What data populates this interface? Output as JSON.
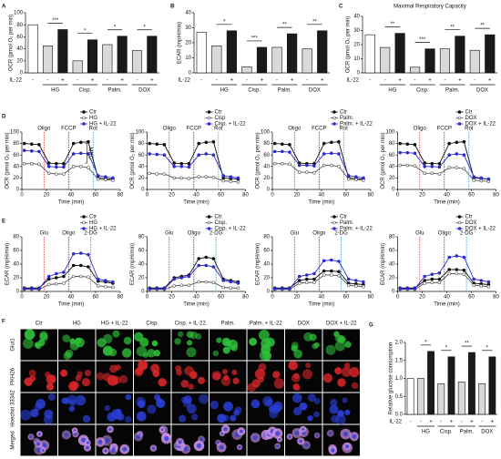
{
  "panel_labels": [
    "A",
    "B",
    "C",
    "D",
    "E",
    "F",
    "G"
  ],
  "chart_data": [
    {
      "type": "bar",
      "ylabel": "OCR (pmol O₂ per min)",
      "ylim": [
        0,
        100
      ],
      "yticks": [
        0,
        20,
        40,
        60,
        80,
        100
      ],
      "treatment_label": "IL-22",
      "categories": [
        "-",
        "-",
        "+",
        "-",
        "+",
        "-",
        "+",
        "-",
        "+"
      ],
      "groups": [
        "HG",
        "Cisp.",
        "Palm.",
        "DOX"
      ],
      "values": [
        80,
        45,
        72,
        20,
        55,
        47,
        61,
        37,
        61
      ],
      "colors": [
        "#ffffff",
        "#d9d9d9",
        "#1a1a1a",
        "#d9d9d9",
        "#1a1a1a",
        "#d9d9d9",
        "#1a1a1a",
        "#d9d9d9",
        "#1a1a1a"
      ],
      "significance": [
        "***",
        "*",
        "*",
        "*"
      ]
    },
    {
      "type": "bar",
      "ylabel": "ECAR (mpH/min)",
      "ylim": [
        0,
        40
      ],
      "yticks": [
        0,
        10,
        20,
        30,
        40
      ],
      "treatment_label": "IL-22",
      "categories": [
        "-",
        "-",
        "+",
        "-",
        "+",
        "-",
        "+",
        "-",
        "+"
      ],
      "groups": [
        "HG",
        "Cisp.",
        "Palm.",
        "DOX"
      ],
      "values": [
        27,
        18,
        28,
        4,
        17,
        17,
        26,
        16,
        28
      ],
      "colors": [
        "#ffffff",
        "#d9d9d9",
        "#1a1a1a",
        "#d9d9d9",
        "#1a1a1a",
        "#d9d9d9",
        "#1a1a1a",
        "#d9d9d9",
        "#1a1a1a"
      ],
      "significance": [
        "*",
        "***",
        "**",
        "**"
      ]
    },
    {
      "type": "bar",
      "title": "Maximal Respiratory Capacity",
      "ylabel": "OCR (pmol O₂ per min)",
      "ylim": [
        0,
        40
      ],
      "yticks": [
        0,
        10,
        20,
        30,
        40
      ],
      "treatment_label": "IL-22",
      "categories": [
        "-",
        "-",
        "+",
        "-",
        "+",
        "-",
        "+",
        "-",
        "+"
      ],
      "groups": [
        "HG",
        "Cisp.",
        "Palm.",
        "DOX"
      ],
      "values": [
        27,
        18,
        28,
        4,
        17,
        17,
        26,
        16,
        27
      ],
      "colors": [
        "#ffffff",
        "#d9d9d9",
        "#1a1a1a",
        "#d9d9d9",
        "#1a1a1a",
        "#d9d9d9",
        "#1a1a1a",
        "#d9d9d9",
        "#1a1a1a"
      ],
      "significance": [
        "**",
        "***",
        "**",
        "**"
      ]
    },
    {
      "type": "line",
      "ylabel": "OCR (pmol O₂ per min)",
      "xlabel": "Time (min)",
      "xlim": [
        0,
        80
      ],
      "xticks": [
        0,
        20,
        40,
        60,
        80
      ],
      "ylim": [
        0,
        100
      ],
      "yticks": [
        0,
        20,
        40,
        60,
        80,
        100
      ],
      "annotations": [
        "MRC"
      ],
      "events": [
        {
          "label": "Oligo",
          "x": 18,
          "color": "#d62728"
        },
        {
          "label": "FCCP",
          "x": 38,
          "color": "#333333"
        },
        {
          "label": "Rot",
          "x": 58,
          "color": "#1f9fd0"
        }
      ],
      "x": [
        2,
        8,
        14,
        22,
        28,
        34,
        42,
        48,
        54,
        62,
        68,
        74
      ],
      "series": [
        {
          "name": "Ctr",
          "color": "#111111",
          "filled": true,
          "values": [
            80,
            79,
            78,
            46,
            45,
            45,
            80,
            82,
            83,
            20,
            19,
            18
          ]
        },
        {
          "name": "HG",
          "color": "#555555",
          "filled": false,
          "values": [
            45,
            45,
            44,
            28,
            27,
            27,
            40,
            40,
            38,
            18,
            17,
            16
          ]
        },
        {
          "name": "HG + IL-22",
          "color": "#2b2bd0",
          "filled": true,
          "values": [
            68,
            67,
            66,
            40,
            39,
            39,
            62,
            63,
            62,
            24,
            22,
            20
          ]
        }
      ]
    },
    {
      "type": "line",
      "ylabel": "OCR (pmol O₂ per min)",
      "xlabel": "Time (min)",
      "xlim": [
        0,
        80
      ],
      "xticks": [
        0,
        20,
        40,
        60,
        80
      ],
      "ylim": [
        0,
        100
      ],
      "yticks": [
        0,
        20,
        40,
        60,
        80,
        100
      ],
      "events": [
        {
          "label": "Oligo",
          "x": 18,
          "color": "#d62728"
        },
        {
          "label": "FCCP",
          "x": 38,
          "color": "#333333"
        },
        {
          "label": "Rot",
          "x": 58,
          "color": "#1f9fd0"
        }
      ],
      "x": [
        2,
        8,
        14,
        22,
        28,
        34,
        42,
        48,
        54,
        62,
        68,
        74
      ],
      "series": [
        {
          "name": "Ctr",
          "color": "#111111",
          "filled": true,
          "values": [
            80,
            79,
            78,
            46,
            45,
            45,
            80,
            82,
            83,
            20,
            19,
            18
          ]
        },
        {
          "name": "Cisp",
          "color": "#555555",
          "filled": false,
          "values": [
            28,
            27,
            27,
            20,
            20,
            19,
            22,
            22,
            21,
            15,
            14,
            13
          ]
        },
        {
          "name": "Cisp. + IL-22",
          "color": "#2b2bd0",
          "filled": true,
          "values": [
            62,
            61,
            60,
            40,
            40,
            39,
            60,
            62,
            60,
            24,
            22,
            20
          ]
        }
      ]
    },
    {
      "type": "line",
      "ylabel": "OCR (pmol O₂ per min)",
      "xlabel": "Time (min)",
      "xlim": [
        0,
        80
      ],
      "xticks": [
        0,
        20,
        40,
        60,
        80
      ],
      "ylim": [
        0,
        100
      ],
      "yticks": [
        0,
        20,
        40,
        60,
        80,
        100
      ],
      "events": [
        {
          "label": "Oligo",
          "x": 18,
          "color": "#d62728"
        },
        {
          "label": "FCCP",
          "x": 38,
          "color": "#333333"
        },
        {
          "label": "Rot",
          "x": 58,
          "color": "#1f9fd0"
        }
      ],
      "x": [
        2,
        8,
        14,
        22,
        28,
        34,
        42,
        48,
        54,
        62,
        68,
        74
      ],
      "series": [
        {
          "name": "Ctr",
          "color": "#111111",
          "filled": true,
          "values": [
            80,
            79,
            78,
            46,
            45,
            45,
            80,
            82,
            83,
            20,
            19,
            18
          ]
        },
        {
          "name": "Palm.",
          "color": "#555555",
          "filled": false,
          "values": [
            45,
            45,
            44,
            30,
            30,
            29,
            42,
            42,
            40,
            18,
            17,
            16
          ]
        },
        {
          "name": "Palm. + IL-22",
          "color": "#2b2bd0",
          "filled": true,
          "values": [
            66,
            66,
            65,
            42,
            42,
            41,
            62,
            63,
            62,
            24,
            22,
            20
          ]
        }
      ]
    },
    {
      "type": "line",
      "ylabel": "OCR (pmol O₂ per min)",
      "xlabel": "Time (min)",
      "xlim": [
        0,
        80
      ],
      "xticks": [
        0,
        20,
        40,
        60,
        80
      ],
      "ylim": [
        0,
        100
      ],
      "yticks": [
        0,
        20,
        40,
        60,
        80,
        100
      ],
      "events": [
        {
          "label": "Oligo",
          "x": 18,
          "color": "#d62728"
        },
        {
          "label": "FCCP",
          "x": 38,
          "color": "#333333"
        },
        {
          "label": "Rot",
          "x": 58,
          "color": "#1f9fd0"
        }
      ],
      "x": [
        2,
        8,
        14,
        22,
        28,
        34,
        42,
        48,
        54,
        62,
        68,
        74
      ],
      "series": [
        {
          "name": "Ctr",
          "color": "#111111",
          "filled": true,
          "values": [
            80,
            79,
            78,
            46,
            45,
            45,
            80,
            82,
            83,
            20,
            19,
            18
          ]
        },
        {
          "name": "DOX",
          "color": "#555555",
          "filled": false,
          "values": [
            42,
            42,
            41,
            28,
            28,
            27,
            38,
            38,
            36,
            16,
            15,
            14
          ]
        },
        {
          "name": "DOX + IL-22",
          "color": "#2b2bd0",
          "filled": true,
          "values": [
            64,
            64,
            63,
            40,
            40,
            39,
            60,
            62,
            60,
            22,
            20,
            18
          ]
        }
      ]
    },
    {
      "type": "line",
      "ylabel": "ECAR (mpH/min)",
      "xlabel": "Time (min)",
      "xlim": [
        0,
        80
      ],
      "xticks": [
        0,
        20,
        40,
        60,
        80
      ],
      "ylim": [
        0,
        80
      ],
      "yticks": [
        0,
        20,
        40,
        60,
        80
      ],
      "events": [
        {
          "label": "Glu",
          "x": 18,
          "color": "#d62728"
        },
        {
          "label": "Oligo",
          "x": 38,
          "color": "#333333"
        },
        {
          "label": "2-DG",
          "x": 56,
          "color": "#1f9fd0"
        }
      ],
      "x": [
        2,
        8,
        14,
        22,
        28,
        34,
        42,
        48,
        54,
        62,
        68,
        74
      ],
      "series": [
        {
          "name": "Ctr",
          "color": "#111111",
          "filled": true,
          "values": [
            5,
            5,
            5,
            18,
            20,
            22,
            38,
            38,
            36,
            15,
            14,
            12
          ]
        },
        {
          "name": "HG",
          "color": "#555555",
          "filled": false,
          "values": [
            3,
            3,
            3,
            10,
            11,
            12,
            22,
            22,
            21,
            8,
            7,
            6
          ]
        },
        {
          "name": "HG + IL-22",
          "color": "#2b2bd0",
          "filled": true,
          "values": [
            4,
            4,
            4,
            22,
            26,
            28,
            55,
            56,
            54,
            18,
            16,
            14
          ]
        }
      ]
    },
    {
      "type": "line",
      "ylabel": "ECAR (mpH/min)",
      "xlabel": "Time (min)",
      "xlim": [
        0,
        80
      ],
      "xticks": [
        0,
        20,
        40,
        60,
        80
      ],
      "ylim": [
        0,
        80
      ],
      "yticks": [
        0,
        20,
        40,
        60,
        80
      ],
      "events": [
        {
          "label": "Glu",
          "x": 18,
          "color": "#d62728"
        },
        {
          "label": "Oligo",
          "x": 38,
          "color": "#333333"
        },
        {
          "label": "2-DG",
          "x": 56,
          "color": "#1f9fd0"
        }
      ],
      "x": [
        2,
        8,
        14,
        22,
        28,
        34,
        42,
        48,
        54,
        62,
        68,
        74
      ],
      "series": [
        {
          "name": "Ctr",
          "color": "#111111",
          "filled": true,
          "values": [
            5,
            5,
            5,
            20,
            22,
            24,
            48,
            50,
            48,
            18,
            16,
            14
          ]
        },
        {
          "name": "Cisp.",
          "color": "#555555",
          "filled": false,
          "values": [
            3,
            3,
            3,
            8,
            9,
            9,
            14,
            14,
            13,
            6,
            5,
            5
          ]
        },
        {
          "name": "Cisp. + IL-22",
          "color": "#2b2bd0",
          "filled": true,
          "values": [
            4,
            4,
            4,
            18,
            20,
            22,
            38,
            38,
            36,
            16,
            14,
            12
          ]
        }
      ]
    },
    {
      "type": "line",
      "ylabel": "ECAR (mpH/min)",
      "xlabel": "Time (min)",
      "xlim": [
        0,
        80
      ],
      "xticks": [
        0,
        20,
        40,
        60,
        80
      ],
      "ylim": [
        0,
        80
      ],
      "yticks": [
        0,
        20,
        40,
        60,
        80
      ],
      "events": [
        {
          "label": "Glu",
          "x": 18,
          "color": "#d62728"
        },
        {
          "label": "Oligo",
          "x": 38,
          "color": "#333333"
        },
        {
          "label": "2-DG",
          "x": 56,
          "color": "#1f9fd0"
        }
      ],
      "x": [
        2,
        8,
        14,
        22,
        28,
        34,
        42,
        48,
        54,
        62,
        68,
        74
      ],
      "series": [
        {
          "name": "Ctr",
          "color": "#111111",
          "filled": true,
          "values": [
            5,
            5,
            5,
            16,
            18,
            18,
            30,
            30,
            29,
            12,
            11,
            10
          ]
        },
        {
          "name": "Palm.",
          "color": "#555555",
          "filled": false,
          "values": [
            3,
            3,
            3,
            12,
            13,
            13,
            24,
            24,
            23,
            9,
            8,
            7
          ]
        },
        {
          "name": "Palm. + IL-22",
          "color": "#2b2bd0",
          "filled": true,
          "values": [
            4,
            4,
            4,
            22,
            24,
            26,
            45,
            46,
            44,
            18,
            16,
            14
          ]
        }
      ]
    },
    {
      "type": "line",
      "ylabel": "ECAR (mpH/min)",
      "xlabel": "Time (min)",
      "xlim": [
        0,
        80
      ],
      "xticks": [
        0,
        20,
        40,
        60,
        80
      ],
      "ylim": [
        0,
        80
      ],
      "yticks": [
        0,
        20,
        40,
        60,
        80
      ],
      "events": [
        {
          "label": "Glu",
          "x": 18,
          "color": "#d62728"
        },
        {
          "label": "Oligo",
          "x": 38,
          "color": "#333333"
        },
        {
          "label": "2-DG",
          "x": 56,
          "color": "#1f9fd0"
        }
      ],
      "x": [
        2,
        8,
        14,
        22,
        28,
        34,
        42,
        48,
        54,
        62,
        68,
        74
      ],
      "series": [
        {
          "name": "Ctr",
          "color": "#111111",
          "filled": true,
          "values": [
            5,
            5,
            5,
            16,
            18,
            18,
            32,
            32,
            31,
            12,
            11,
            10
          ]
        },
        {
          "name": "DOX",
          "color": "#555555",
          "filled": false,
          "values": [
            3,
            3,
            3,
            12,
            13,
            13,
            26,
            26,
            25,
            9,
            8,
            7
          ]
        },
        {
          "name": "DOX + IL-22",
          "color": "#2b2bd0",
          "filled": true,
          "values": [
            4,
            4,
            4,
            22,
            25,
            27,
            50,
            52,
            50,
            18,
            16,
            14
          ]
        }
      ]
    },
    {
      "type": "bar",
      "ylabel": "Relative glucose consumption",
      "ylim": [
        0,
        2
      ],
      "yticks": [
        {
          "value": 0,
          "label": "0.0"
        },
        {
          "value": 0.5,
          "label": "0.5"
        },
        {
          "value": 1,
          "label": "1.0"
        },
        {
          "value": 1.5,
          "label": "1.5"
        },
        {
          "value": 2,
          "label": "2.0"
        }
      ],
      "treatment_label": "IL-22",
      "categories": [
        "-",
        "-",
        "+",
        "-",
        "+",
        "-",
        "+",
        "-",
        "+"
      ],
      "groups": [
        "HG",
        "Cisp.",
        "Palm.",
        "DOX"
      ],
      "values": [
        1,
        1,
        1.75,
        0.85,
        1.6,
        0.9,
        1.72,
        0.85,
        1.6
      ],
      "colors": [
        "#ffffff",
        "#d9d9d9",
        "#1a1a1a",
        "#d9d9d9",
        "#1a1a1a",
        "#d9d9d9",
        "#1a1a1a",
        "#d9d9d9",
        "#1a1a1a"
      ],
      "significance": [
        "*",
        "*",
        "**",
        "*"
      ]
    }
  ],
  "microscopy": {
    "columns": [
      "Ctr",
      "HG",
      "HG + IL-22",
      "Cisp.",
      "Cisp. + IL-22",
      "Palm.",
      "Palm. + IL-22",
      "DOX",
      "DOX + IL-22"
    ],
    "rows": [
      "Glut1",
      "PKH26",
      "Hoechst 33342",
      "Merged"
    ],
    "row_colors": [
      "#2fbf3a",
      "#d9262a",
      "#2a3fd8",
      "#c98fe0"
    ]
  }
}
